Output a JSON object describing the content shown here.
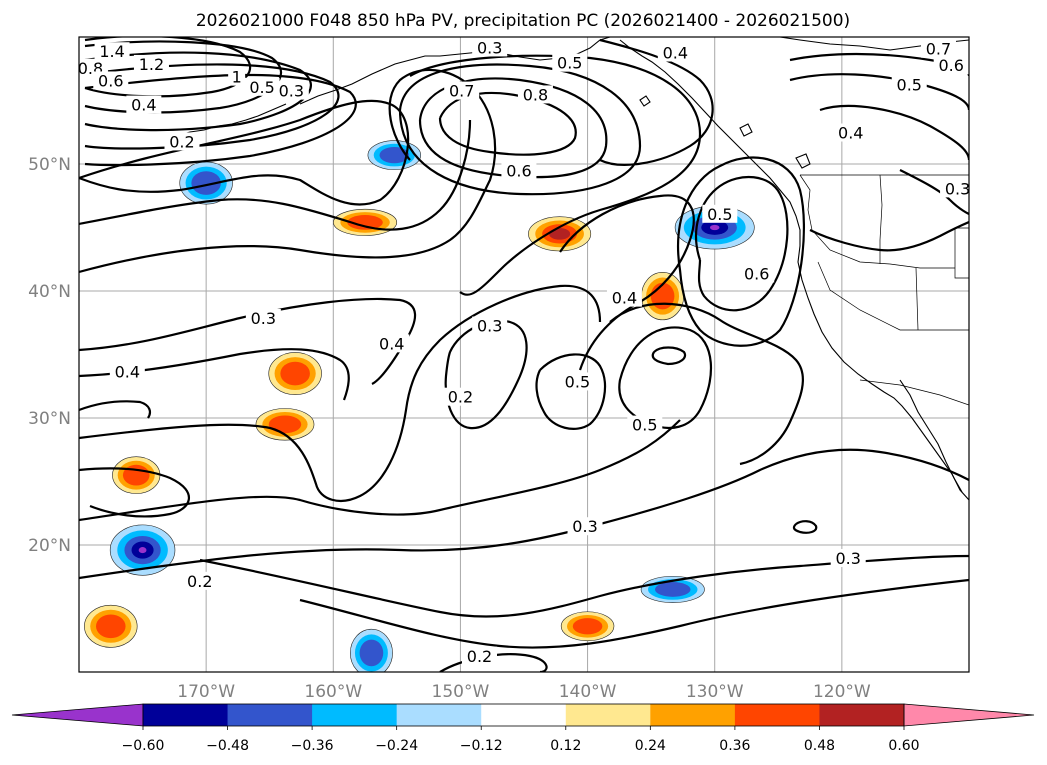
{
  "chart_data": {
    "type": "heatmap",
    "title": "2026021000 F048 850 hPa PV, precipitation PC (2026021400 - 2026021500)",
    "map": {
      "lon_range": [
        -180,
        -110
      ],
      "lat_range": [
        10,
        60
      ],
      "x_ticks": [
        {
          "lon": -170,
          "label": "170°W"
        },
        {
          "lon": -160,
          "label": "160°W"
        },
        {
          "lon": -150,
          "label": "150°W"
        },
        {
          "lon": -140,
          "label": "140°W"
        },
        {
          "lon": -130,
          "label": "130°W"
        },
        {
          "lon": -120,
          "label": "120°W"
        }
      ],
      "y_ticks": [
        {
          "lat": 20,
          "label": "20°N"
        },
        {
          "lat": 30,
          "label": "30°N"
        },
        {
          "lat": 40,
          "label": "40°N"
        },
        {
          "lat": 50,
          "label": "50°N"
        }
      ],
      "grid": true
    },
    "colorbar": {
      "ticks": [
        "−0.60",
        "−0.48",
        "−0.36",
        "−0.24",
        "−0.12",
        "0.12",
        "0.24",
        "0.36",
        "0.48",
        "0.60"
      ],
      "levels": [
        -0.6,
        -0.48,
        -0.36,
        -0.24,
        -0.12,
        0.12,
        0.24,
        0.36,
        0.48,
        0.6
      ],
      "colors": [
        "#9933cc",
        "#000099",
        "#3355cc",
        "#00bbff",
        "#aaddff",
        "#ffffff",
        "#ffe890",
        "#ffa100",
        "#ff4500",
        "#b22222",
        "#ff88aa"
      ],
      "extend": "both"
    },
    "contour_labels": [
      {
        "text": "1.4",
        "lon": -177.4,
        "lat": 58.8
      },
      {
        "text": "1.2",
        "lon": -174.3,
        "lat": 57.8
      },
      {
        "text": "0.8",
        "lon": -179.1,
        "lat": 57.5
      },
      {
        "text": "0.6",
        "lon": -177.5,
        "lat": 56.5
      },
      {
        "text": "0.4",
        "lon": -174.9,
        "lat": 54.6
      },
      {
        "text": "0.2",
        "lon": -171.9,
        "lat": 51.7
      },
      {
        "text": "1",
        "lon": -167.6,
        "lat": 56.8
      },
      {
        "text": "0.5",
        "lon": -165.6,
        "lat": 56.0
      },
      {
        "text": "0.3",
        "lon": -163.3,
        "lat": 55.7
      },
      {
        "text": "0.3",
        "lon": -147.7,
        "lat": 59.1
      },
      {
        "text": "0.5",
        "lon": -141.4,
        "lat": 57.9
      },
      {
        "text": "0.4",
        "lon": -133.1,
        "lat": 58.7
      },
      {
        "text": "0.7",
        "lon": -149.9,
        "lat": 55.7
      },
      {
        "text": "0.8",
        "lon": -144.1,
        "lat": 55.4
      },
      {
        "text": "0.6",
        "lon": -145.4,
        "lat": 49.4
      },
      {
        "text": "0.7",
        "lon": -112.4,
        "lat": 59.0
      },
      {
        "text": "0.6",
        "lon": -111.4,
        "lat": 57.7
      },
      {
        "text": "0.5",
        "lon": -114.7,
        "lat": 56.2
      },
      {
        "text": "0.4",
        "lon": -119.3,
        "lat": 52.4
      },
      {
        "text": "0.3",
        "lon": -110.9,
        "lat": 48.0
      },
      {
        "text": "0.5",
        "lon": -129.6,
        "lat": 46.0
      },
      {
        "text": "0.6",
        "lon": -126.7,
        "lat": 41.3
      },
      {
        "text": "0.4",
        "lon": -137.1,
        "lat": 39.4
      },
      {
        "text": "0.3",
        "lon": -165.5,
        "lat": 37.8
      },
      {
        "text": "0.4",
        "lon": -176.2,
        "lat": 33.6
      },
      {
        "text": "0.4",
        "lon": -155.4,
        "lat": 35.8
      },
      {
        "text": "0.3",
        "lon": -147.7,
        "lat": 37.2
      },
      {
        "text": "0.2",
        "lon": -150.0,
        "lat": 31.6
      },
      {
        "text": "0.5",
        "lon": -140.8,
        "lat": 32.8
      },
      {
        "text": "0.5",
        "lon": -135.5,
        "lat": 29.4
      },
      {
        "text": "0.3",
        "lon": -140.2,
        "lat": 21.4
      },
      {
        "text": "0.3",
        "lon": -119.5,
        "lat": 18.9
      },
      {
        "text": "0.2",
        "lon": -170.5,
        "lat": 17.1
      },
      {
        "text": "0.2",
        "lon": -148.5,
        "lat": 11.2
      }
    ],
    "precip_patches": [
      {
        "lon": -155.2,
        "lat": 50.7,
        "value": -0.36
      },
      {
        "lon": -170.0,
        "lat": 48.5,
        "value": -0.36
      },
      {
        "lon": -130.0,
        "lat": 45.0,
        "value": -0.6
      },
      {
        "lon": -175.0,
        "lat": 19.6,
        "value": -0.6
      },
      {
        "lon": -133.3,
        "lat": 16.5,
        "value": -0.36
      },
      {
        "lon": -157.0,
        "lat": 11.5,
        "value": -0.36
      },
      {
        "lon": -142.2,
        "lat": 44.5,
        "value": 0.48
      },
      {
        "lon": -163.0,
        "lat": 33.5,
        "value": 0.36
      },
      {
        "lon": -163.8,
        "lat": 29.5,
        "value": 0.36
      },
      {
        "lon": -175.5,
        "lat": 25.5,
        "value": 0.36
      },
      {
        "lon": -157.5,
        "lat": 45.4,
        "value": 0.36
      },
      {
        "lon": -134.1,
        "lat": 39.6,
        "value": 0.36
      },
      {
        "lon": -140.0,
        "lat": 13.6,
        "value": 0.36
      },
      {
        "lon": -177.5,
        "lat": 13.6,
        "value": 0.36
      }
    ]
  }
}
